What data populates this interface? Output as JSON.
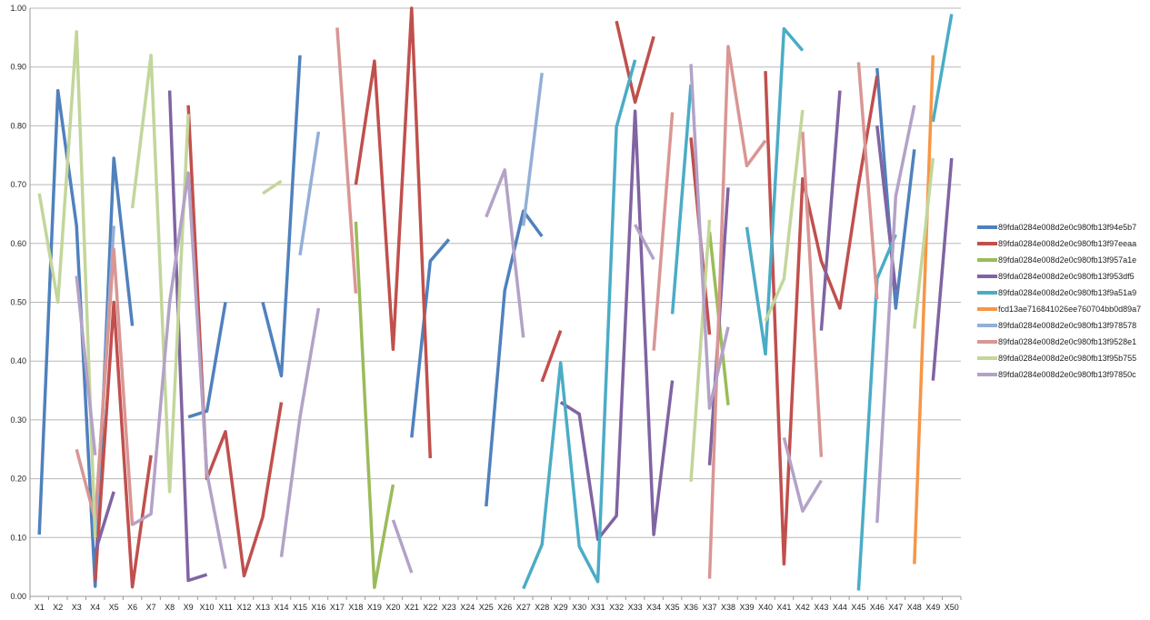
{
  "chart_data": {
    "type": "line",
    "title": "",
    "xlabel": "",
    "ylabel": "",
    "ylim": [
      0,
      1
    ],
    "y_ticks": [
      "0.00",
      "0.10",
      "0.20",
      "0.30",
      "0.40",
      "0.50",
      "0.60",
      "0.70",
      "0.80",
      "0.90",
      "1.00"
    ],
    "grid": true,
    "legend_position": "right",
    "categories": [
      "X1",
      "X2",
      "X3",
      "X4",
      "X5",
      "X6",
      "X7",
      "X8",
      "X9",
      "X10",
      "X11",
      "X12",
      "X13",
      "X14",
      "X15",
      "X16",
      "X17",
      "X18",
      "X19",
      "X20",
      "X21",
      "X22",
      "X23",
      "X24",
      "X25",
      "X26",
      "X27",
      "X28",
      "X29",
      "X30",
      "X31",
      "X32",
      "X33",
      "X34",
      "X35",
      "X36",
      "X37",
      "X38",
      "X39",
      "X40",
      "X41",
      "X42",
      "X43",
      "X44",
      "X45",
      "X46",
      "X47",
      "X48",
      "X49",
      "X50"
    ],
    "series": [
      {
        "name": "89fda0284e008d2e0c980fb13f94e5b7",
        "color": "#4f81bd",
        "values": [
          0.105,
          0.86,
          0.63,
          0.017,
          0.745,
          0.46,
          null,
          null,
          0.305,
          0.315,
          0.5,
          null,
          0.5,
          0.375,
          0.92,
          null,
          null,
          null,
          null,
          null,
          0.27,
          0.57,
          0.607,
          null,
          0.153,
          0.52,
          0.655,
          0.612,
          null,
          null,
          null,
          null,
          null,
          null,
          null,
          null,
          null,
          null,
          null,
          null,
          null,
          null,
          null,
          null,
          null,
          0.898,
          0.49,
          0.76,
          null,
          null
        ]
      },
      {
        "name": "89fda0284e008d2e0c980fb13f97eeaa",
        "color": "#c0504d",
        "values": [
          null,
          null,
          null,
          0.025,
          0.5,
          0.016,
          0.24,
          null,
          0.835,
          0.2,
          0.28,
          0.035,
          0.135,
          0.33,
          null,
          null,
          null,
          0.7,
          0.91,
          0.42,
          1.0,
          0.235,
          null,
          null,
          null,
          null,
          null,
          0.365,
          0.452,
          null,
          null,
          0.978,
          0.84,
          0.952,
          null,
          0.78,
          0.445,
          null,
          null,
          0.893,
          0.055,
          0.71,
          0.57,
          0.49,
          0.7,
          0.885,
          null,
          null,
          null,
          null
        ]
      },
      {
        "name": "89fda0284e008d2e0c980fb13f957a1e",
        "color": "#9bbb59",
        "values": [
          null,
          null,
          null,
          null,
          null,
          null,
          null,
          null,
          null,
          null,
          null,
          null,
          null,
          null,
          null,
          null,
          null,
          0.637,
          0.015,
          0.19,
          null,
          null,
          null,
          null,
          null,
          null,
          null,
          null,
          null,
          null,
          null,
          null,
          null,
          null,
          null,
          null,
          0.62,
          0.325,
          null,
          null,
          null,
          null,
          null,
          null,
          null,
          null,
          null,
          null,
          null,
          null
        ]
      },
      {
        "name": "89fda0284e008d2e0c980fb13f953df5",
        "color": "#8064a2",
        "values": [
          null,
          null,
          null,
          0.075,
          0.178,
          null,
          null,
          0.86,
          0.027,
          0.037,
          null,
          null,
          null,
          null,
          null,
          null,
          null,
          null,
          null,
          null,
          null,
          null,
          null,
          null,
          null,
          null,
          null,
          null,
          0.33,
          0.31,
          0.097,
          0.137,
          0.825,
          0.105,
          0.367,
          null,
          0.223,
          0.695,
          null,
          null,
          null,
          null,
          0.452,
          0.86,
          null,
          0.8,
          0.52,
          null,
          0.367,
          0.745
        ]
      },
      {
        "name": "89fda0284e008d2e0c980fb13f9a51a9",
        "color": "#4bacc6",
        "values": [
          null,
          null,
          null,
          null,
          null,
          null,
          null,
          null,
          null,
          null,
          null,
          null,
          null,
          null,
          null,
          null,
          null,
          null,
          null,
          null,
          null,
          null,
          null,
          null,
          null,
          null,
          0.013,
          0.088,
          0.397,
          0.085,
          0.025,
          0.798,
          0.912,
          null,
          0.48,
          0.87,
          null,
          null,
          0.628,
          0.412,
          0.965,
          0.928,
          null,
          null,
          0.01,
          0.54,
          0.615,
          null,
          0.807,
          0.99
        ]
      },
      {
        "name": "fcd13ae716841026ee760704bb0d89a7",
        "color": "#f79646",
        "values": [
          null,
          null,
          null,
          null,
          null,
          null,
          null,
          null,
          null,
          null,
          null,
          null,
          null,
          null,
          null,
          null,
          null,
          null,
          null,
          null,
          null,
          null,
          null,
          null,
          null,
          null,
          null,
          null,
          null,
          null,
          null,
          null,
          null,
          null,
          null,
          null,
          null,
          null,
          null,
          null,
          null,
          null,
          null,
          null,
          null,
          null,
          null,
          0.055,
          0.92,
          null
        ]
      },
      {
        "name": "89fda0284e008d2e0c980fb13f978578",
        "color": "#94afd6",
        "values": [
          null,
          null,
          null,
          0.11,
          0.63,
          null,
          null,
          null,
          null,
          null,
          null,
          null,
          null,
          null,
          0.58,
          0.79,
          null,
          null,
          null,
          null,
          null,
          null,
          null,
          null,
          null,
          null,
          0.63,
          0.89,
          null,
          null,
          null,
          null,
          null,
          null,
          null,
          null,
          null,
          null,
          null,
          null,
          null,
          null,
          null,
          null,
          null,
          null,
          null,
          null,
          null,
          null
        ]
      },
      {
        "name": "89fda0284e008d2e0c980fb13f9528e1",
        "color": "#d99694",
        "values": [
          null,
          null,
          0.25,
          0.13,
          0.59,
          0.12,
          null,
          null,
          null,
          null,
          null,
          null,
          null,
          null,
          null,
          null,
          0.967,
          0.515,
          null,
          null,
          null,
          null,
          null,
          null,
          null,
          null,
          null,
          null,
          null,
          null,
          null,
          null,
          null,
          0.418,
          0.823,
          null,
          0.03,
          0.935,
          0.732,
          0.775,
          null,
          0.79,
          0.237,
          null,
          0.908,
          0.505,
          null,
          null,
          null,
          null
        ]
      },
      {
        "name": "89fda0284e008d2e0c980fb13f95b755",
        "color": "#c3d69b",
        "values": [
          0.685,
          0.5,
          0.96,
          0.1,
          null,
          0.66,
          0.92,
          0.178,
          0.82,
          null,
          null,
          null,
          0.685,
          0.706,
          null,
          null,
          null,
          null,
          null,
          null,
          null,
          null,
          null,
          null,
          null,
          null,
          null,
          null,
          null,
          null,
          null,
          null,
          null,
          null,
          null,
          0.195,
          0.64,
          null,
          null,
          0.468,
          0.54,
          0.827,
          null,
          null,
          null,
          null,
          null,
          0.455,
          0.745,
          null
        ]
      },
      {
        "name": "89fda0284e008d2e0c980fb13f97850c",
        "color": "#b3a2c7",
        "values": [
          null,
          null,
          0.545,
          0.24,
          null,
          0.122,
          0.14,
          0.5,
          0.72,
          0.21,
          0.047,
          null,
          null,
          0.067,
          0.305,
          0.49,
          null,
          null,
          null,
          0.13,
          0.04,
          null,
          null,
          null,
          0.645,
          0.725,
          0.44,
          null,
          null,
          null,
          null,
          null,
          0.632,
          0.573,
          null,
          0.905,
          0.32,
          0.458,
          null,
          null,
          0.27,
          0.145,
          0.197,
          null,
          null,
          0.125,
          0.68,
          0.835,
          null,
          null
        ]
      }
    ]
  }
}
